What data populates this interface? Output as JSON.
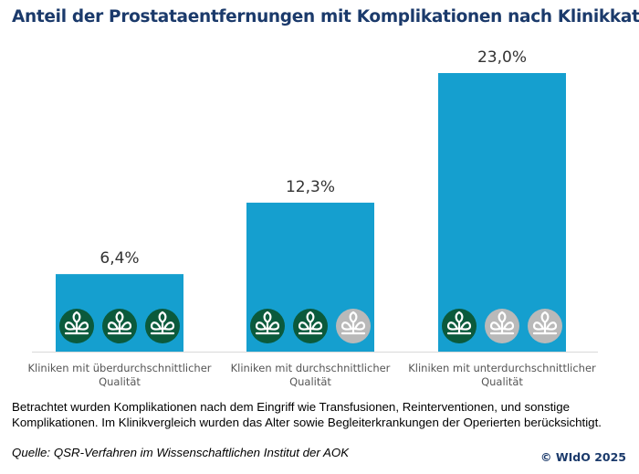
{
  "chart_data": {
    "type": "bar",
    "title": "Anteil der Prostataentfernungen mit Komplikationen nach Klinikkategorie",
    "categories": [
      [
        "Kliniken mit überdurchschnittlicher",
        "Qualität"
      ],
      [
        "Kliniken mit durchschnittlicher",
        "Qualität"
      ],
      [
        "Kliniken mit unterdurchschnittlicher",
        "Qualität"
      ]
    ],
    "values": [
      6.4,
      12.3,
      23.0
    ],
    "data_labels": [
      "6,4%",
      "12,3%",
      "23,0%"
    ],
    "quality_icons_filled": [
      3,
      2,
      1
    ],
    "quality_icons_total": 3,
    "ylim": [
      0,
      23.0
    ],
    "grid": false,
    "colors": {
      "bar": "#159fcf",
      "icon_filled": "#0b5a3c",
      "icon_empty": "#b9b9b9",
      "title": "#1b3a6b"
    }
  },
  "note": "Betrachtet wurden Komplikationen nach dem Eingriff wie Transfusionen, Reinterventionen, und sonstige Komplikationen. Im Klinikvergleich wurden das Alter sowie Begleiterkrankungen der Operierten berücksichtigt.",
  "source": "Quelle: QSR-Verfahren im Wissenschaftlichen Institut der AOK",
  "copyright": "© WIdO 2025"
}
